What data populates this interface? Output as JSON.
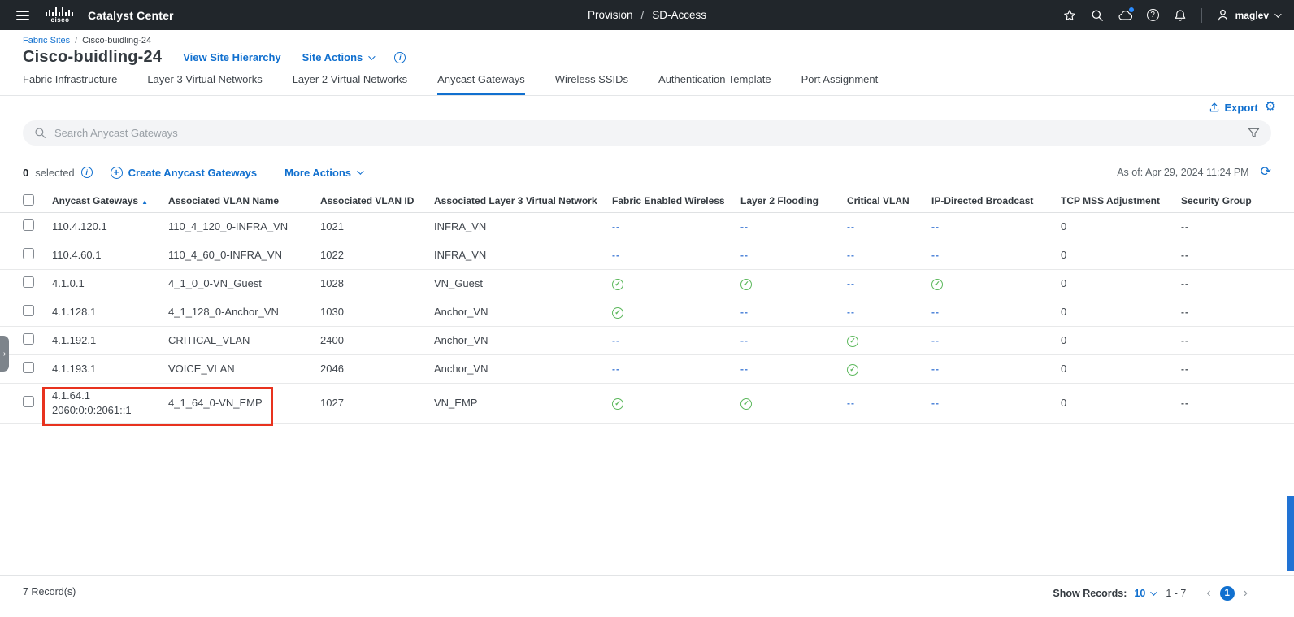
{
  "header": {
    "logo_text": "cisco",
    "app_title": "Catalyst Center",
    "center": [
      "Provision",
      "SD-Access"
    ],
    "separator": "/",
    "user": "maglev",
    "icons": [
      "favorites-star",
      "global-search",
      "cloud-status",
      "help",
      "notifications",
      "user-account"
    ]
  },
  "page": {
    "breadcrumb": [
      "Fabric Sites",
      "Cisco-buidling-24"
    ],
    "separator": "/",
    "title": "Cisco-buidling-24",
    "view_site_hierarchy": "View Site Hierarchy",
    "site_actions": "Site Actions"
  },
  "tabs": {
    "items": [
      {
        "label": "Fabric Infrastructure",
        "active": false
      },
      {
        "label": "Layer 3 Virtual Networks",
        "active": false
      },
      {
        "label": "Layer 2 Virtual Networks",
        "active": false
      },
      {
        "label": "Anycast Gateways",
        "active": true
      },
      {
        "label": "Wireless SSIDs",
        "active": false
      },
      {
        "label": "Authentication Template",
        "active": false
      },
      {
        "label": "Port Assignment",
        "active": false
      }
    ]
  },
  "toolbar": {
    "export_label": "Export"
  },
  "search": {
    "placeholder": "Search Anycast Gateways"
  },
  "actions": {
    "selected_count": "0",
    "selected_label": "selected",
    "create_label": "Create Anycast Gateways",
    "more_label": "More Actions",
    "as_of": "As of: Apr 29, 2024 11:24 PM"
  },
  "table": {
    "columns": [
      "Anycast Gateways",
      "Associated VLAN Name",
      "Associated VLAN ID",
      "Associated Layer 3 Virtual Network",
      "Fabric Enabled Wireless",
      "Layer 2 Flooding",
      "Critical VLAN",
      "IP-Directed Broadcast",
      "TCP MSS Adjustment",
      "Security Group"
    ],
    "rows": [
      {
        "gateway": [
          "110.4.120.1"
        ],
        "vlan_name": "110_4_120_0-INFRA_VN",
        "vlan_id": "1021",
        "l3vn": "INFRA_VN",
        "fabric_enabled_wireless": "--",
        "layer2_flooding": "--",
        "critical_vlan": "--",
        "ip_directed_broadcast": "--",
        "tcp_mss": "0",
        "security_group": "--",
        "highlighted": false
      },
      {
        "gateway": [
          "110.4.60.1"
        ],
        "vlan_name": "110_4_60_0-INFRA_VN",
        "vlan_id": "1022",
        "l3vn": "INFRA_VN",
        "fabric_enabled_wireless": "--",
        "layer2_flooding": "--",
        "critical_vlan": "--",
        "ip_directed_broadcast": "--",
        "tcp_mss": "0",
        "security_group": "--",
        "highlighted": false
      },
      {
        "gateway": [
          "4.1.0.1"
        ],
        "vlan_name": "4_1_0_0-VN_Guest",
        "vlan_id": "1028",
        "l3vn": "VN_Guest",
        "fabric_enabled_wireless": "check",
        "layer2_flooding": "check",
        "critical_vlan": "--",
        "ip_directed_broadcast": "check",
        "tcp_mss": "0",
        "security_group": "--",
        "highlighted": false
      },
      {
        "gateway": [
          "4.1.128.1"
        ],
        "vlan_name": "4_1_128_0-Anchor_VN",
        "vlan_id": "1030",
        "l3vn": "Anchor_VN",
        "fabric_enabled_wireless": "check",
        "layer2_flooding": "--",
        "critical_vlan": "--",
        "ip_directed_broadcast": "--",
        "tcp_mss": "0",
        "security_group": "--",
        "highlighted": false
      },
      {
        "gateway": [
          "4.1.192.1"
        ],
        "vlan_name": "CRITICAL_VLAN",
        "vlan_id": "2400",
        "l3vn": "Anchor_VN",
        "fabric_enabled_wireless": "--",
        "layer2_flooding": "--",
        "critical_vlan": "check",
        "ip_directed_broadcast": "--",
        "tcp_mss": "0",
        "security_group": "--",
        "highlighted": false
      },
      {
        "gateway": [
          "4.1.193.1"
        ],
        "vlan_name": "VOICE_VLAN",
        "vlan_id": "2046",
        "l3vn": "Anchor_VN",
        "fabric_enabled_wireless": "--",
        "layer2_flooding": "--",
        "critical_vlan": "check",
        "ip_directed_broadcast": "--",
        "tcp_mss": "0",
        "security_group": "--",
        "highlighted": false
      },
      {
        "gateway": [
          "4.1.64.1",
          "2060:0:0:2061::1"
        ],
        "vlan_name": "4_1_64_0-VN_EMP",
        "vlan_id": "1027",
        "l3vn": "VN_EMP",
        "fabric_enabled_wireless": "check",
        "layer2_flooding": "check",
        "critical_vlan": "--",
        "ip_directed_broadcast": "--",
        "tcp_mss": "0",
        "security_group": "--",
        "highlighted": true
      }
    ]
  },
  "footer": {
    "records": "7 Record(s)",
    "show_records": "Show Records:",
    "page_size": "10",
    "range": "1 - 7",
    "page": "1",
    "prev": "‹",
    "next": "›"
  },
  "colors": {
    "accent": "#1170CF",
    "check_green": "#5CB85C",
    "highlight_red": "#E8321E",
    "header_bg": "#21262B"
  }
}
